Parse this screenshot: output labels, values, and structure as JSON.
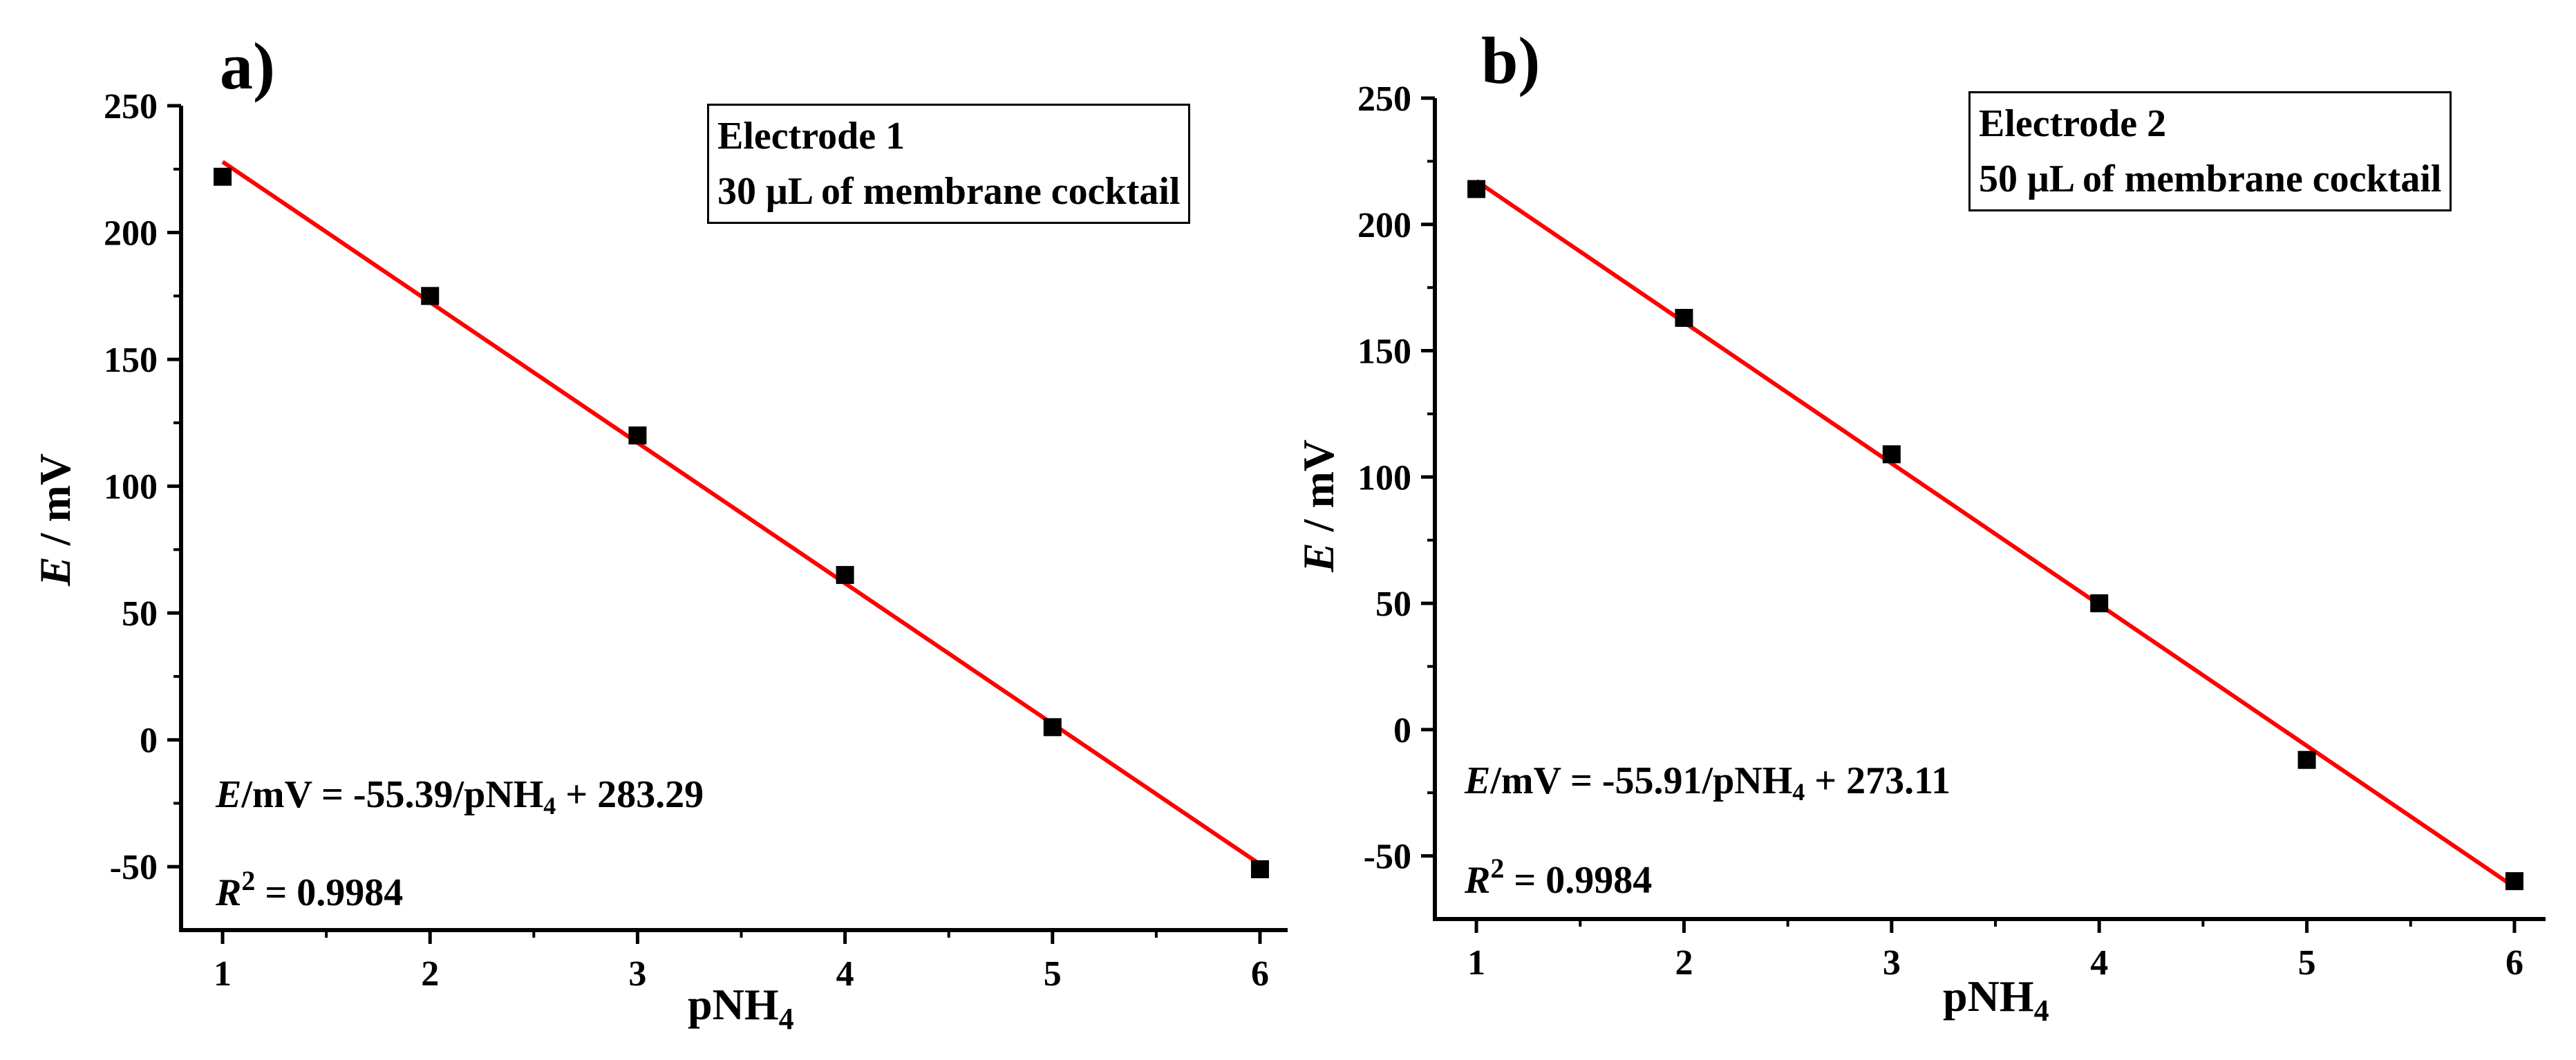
{
  "chart_data": [
    {
      "type": "scatter",
      "panel_label": "a)",
      "legend_lines": [
        "Electrode 1",
        "30 μL of membrane cocktail"
      ],
      "xlabel_main": "pNH",
      "xlabel_sub": "4",
      "ylabel_var": "E",
      "ylabel_rest": " / mV",
      "xlim": [
        0.8,
        6.15
      ],
      "ylim": [
        -75,
        250
      ],
      "xticks": [
        1,
        2,
        3,
        4,
        5,
        6
      ],
      "yticks": [
        -50,
        0,
        50,
        100,
        150,
        200,
        250
      ],
      "series": [
        {
          "x": [
            1,
            2,
            3,
            4,
            5,
            6
          ],
          "y": [
            222,
            175,
            120,
            65,
            5,
            -51
          ]
        }
      ],
      "fit": {
        "slope": -55.39,
        "intercept": 283.29,
        "color": "#ff0000"
      },
      "marker_color": "#000000",
      "equation": {
        "var": "E",
        "lhs_rest": "/mV = -55.39/pNH",
        "sub": "4",
        "rhs": " + 283.29"
      },
      "r2": {
        "var": "R",
        "sup": "2",
        "value": " = 0.9984"
      }
    },
    {
      "type": "scatter",
      "panel_label": "b)",
      "legend_lines": [
        "Electrode 2",
        "50 μL of membrane cocktail"
      ],
      "xlabel_main": "pNH",
      "xlabel_sub": "4",
      "ylabel_var": "E",
      "ylabel_rest": " / mV",
      "xlim": [
        0.8,
        6.15
      ],
      "ylim": [
        -75,
        250
      ],
      "xticks": [
        1,
        2,
        3,
        4,
        5,
        6
      ],
      "yticks": [
        -50,
        0,
        50,
        100,
        150,
        200,
        250
      ],
      "series": [
        {
          "x": [
            1,
            2,
            3,
            4,
            5,
            6
          ],
          "y": [
            214,
            163,
            109,
            50,
            -12,
            -60
          ]
        }
      ],
      "fit": {
        "slope": -55.91,
        "intercept": 273.11,
        "color": "#ff0000"
      },
      "marker_color": "#000000",
      "equation": {
        "var": "E",
        "lhs_rest": "/mV = -55.91/pNH",
        "sub": "4",
        "rhs": " + 273.11"
      },
      "r2": {
        "var": "R",
        "sup": "2",
        "value": " = 0.9984"
      }
    }
  ]
}
